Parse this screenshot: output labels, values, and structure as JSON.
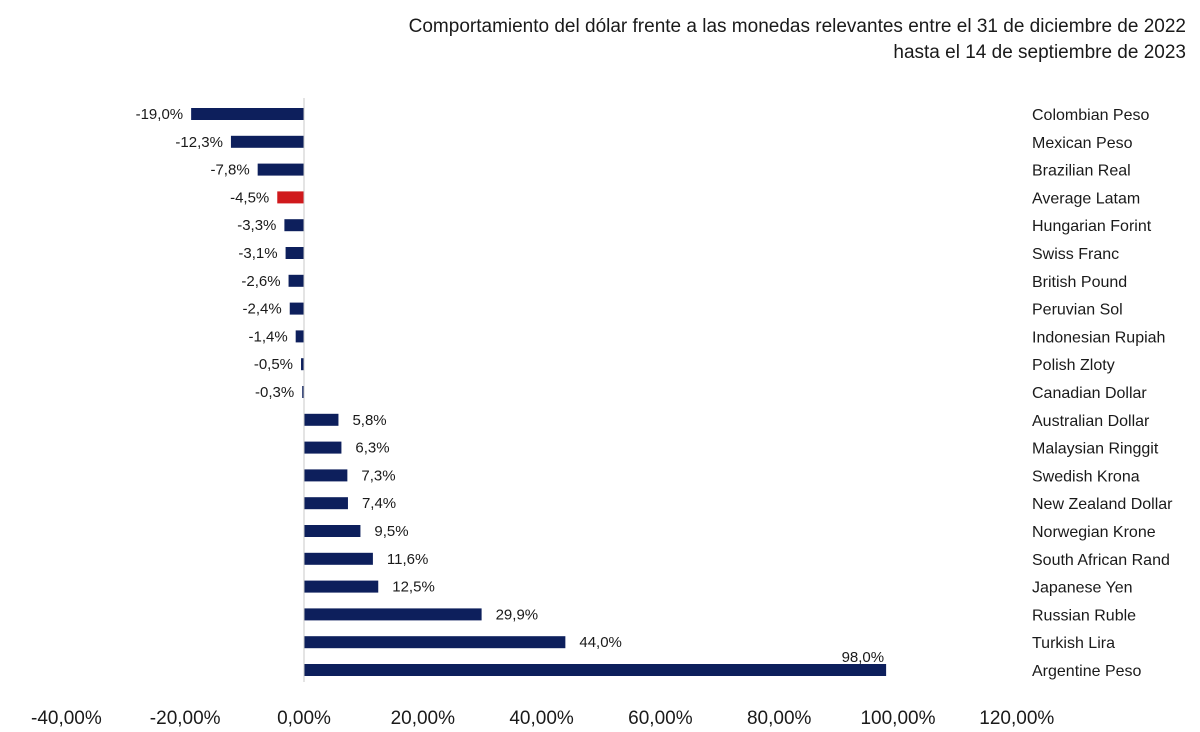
{
  "chart_data": {
    "type": "bar",
    "orientation": "horizontal",
    "title_lines": [
      "Comportamiento del dólar frente a las monedas relevantes entre el 31 de diciembre de 2022",
      "hasta el 14 de septiembre de 2023"
    ],
    "categories": [
      "Colombian Peso",
      "Mexican Peso",
      "Brazilian Real",
      "Average Latam",
      "Hungarian Forint",
      "Swiss Franc",
      "British Pound",
      "Peruvian Sol",
      "Indonesian Rupiah",
      "Polish Zloty",
      "Canadian Dollar",
      "Australian Dollar",
      "Malaysian Ringgit",
      "Swedish Krona",
      "New Zealand Dollar",
      "Norwegian Krone",
      "South African Rand",
      "Japanese Yen",
      "Russian Ruble",
      "Turkish Lira",
      "Argentine Peso"
    ],
    "values": [
      -19.0,
      -12.3,
      -7.8,
      -4.5,
      -3.3,
      -3.1,
      -2.6,
      -2.4,
      -1.4,
      -0.5,
      -0.3,
      5.8,
      6.3,
      7.3,
      7.4,
      9.5,
      11.6,
      12.5,
      29.9,
      44.0,
      98.0
    ],
    "data_labels": [
      "-19,0%",
      "-12,3%",
      "-7,8%",
      "-4,5%",
      "-3,3%",
      "-3,1%",
      "-2,6%",
      "-2,4%",
      "-1,4%",
      "-0,5%",
      "-0,3%",
      "5,8%",
      "6,3%",
      "7,3%",
      "7,4%",
      "9,5%",
      "11,6%",
      "12,5%",
      "29,9%",
      "44,0%",
      "98,0%"
    ],
    "xlim": [
      -40,
      120
    ],
    "x_ticks": [
      -40,
      -20,
      0,
      20,
      40,
      60,
      80,
      100,
      120
    ],
    "x_tick_labels": [
      "-40,00%",
      "-20,00%",
      "0,00%",
      "20,00%",
      "40,00%",
      "60,00%",
      "80,00%",
      "100,00%",
      "120,00%"
    ],
    "grid": false,
    "colors": {
      "bar": "#0d1f5c",
      "highlight": "#d0191c",
      "axis": "#c8c8c8"
    },
    "highlight_category": "Average Latam"
  }
}
